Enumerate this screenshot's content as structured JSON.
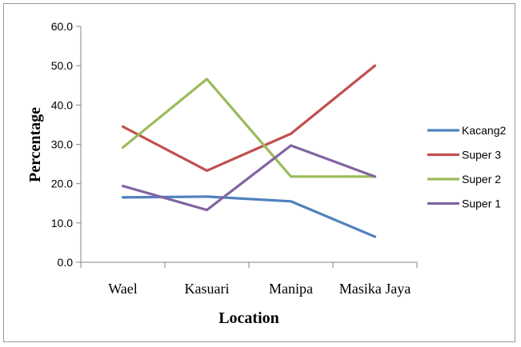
{
  "chart_data": {
    "type": "line",
    "title": "",
    "xlabel": "Location",
    "ylabel": "Percentage",
    "categories": [
      "Wael",
      "Kasuari",
      "Manipa",
      "Masika Jaya"
    ],
    "ylim": [
      0,
      60
    ],
    "ytick_step": 10,
    "ytick_labels": [
      "0.0",
      "10.0",
      "20.0",
      "30.0",
      "40.0",
      "50.0",
      "60.0"
    ],
    "grid": false,
    "legend_position": "right",
    "series": [
      {
        "name": "Kacang2",
        "color": "#4F81BD",
        "values": [
          16.5,
          16.7,
          15.5,
          6.5
        ]
      },
      {
        "name": "Super 3",
        "color": "#C0504D",
        "values": [
          34.5,
          23.3,
          32.7,
          50.0
        ]
      },
      {
        "name": "Super 2",
        "color": "#9BBB59",
        "values": [
          29.2,
          46.6,
          21.8,
          21.8
        ]
      },
      {
        "name": "Super 1",
        "color": "#8064A2",
        "values": [
          19.4,
          13.3,
          29.7,
          21.8
        ]
      }
    ]
  }
}
